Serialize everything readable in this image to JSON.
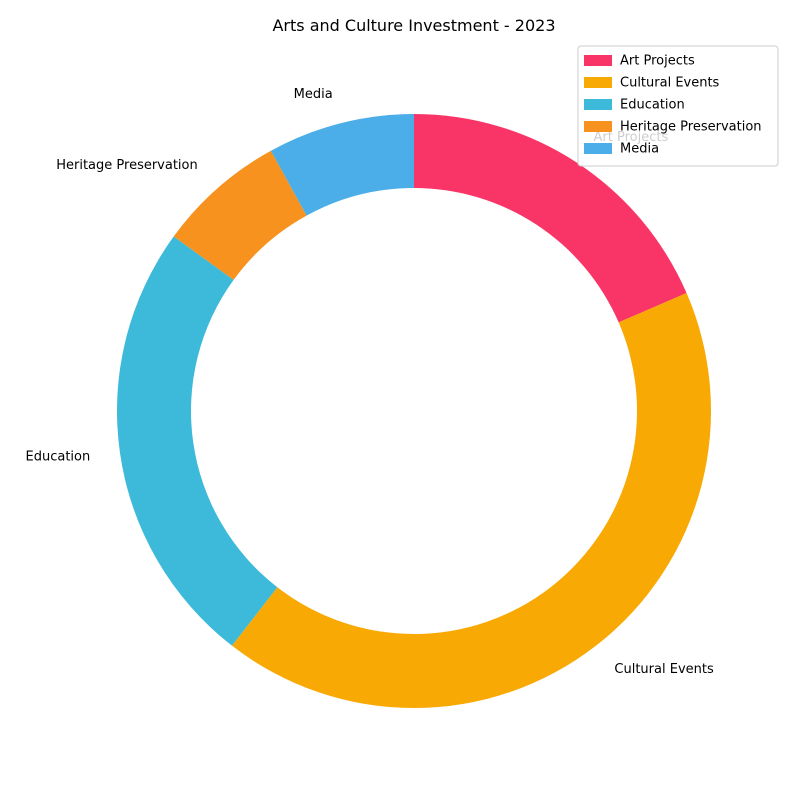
{
  "chart_data": {
    "type": "pie",
    "variant": "donut",
    "title": "Arts and Culture Investment - 2023",
    "categories": [
      "Art Projects",
      "Cultural Events",
      "Education",
      "Heritage Preservation",
      "Media"
    ],
    "values": [
      18.5,
      42.0,
      24.5,
      7.0,
      8.0
    ],
    "colors": [
      "#f93567",
      "#f9a903",
      "#3dbad9",
      "#f7921e",
      "#4baee8"
    ],
    "start_angle_deg": 90,
    "direction": "clockwise",
    "legend": {
      "position": "top-right",
      "entries": [
        "Art Projects",
        "Cultural Events",
        "Education",
        "Heritage Preservation",
        "Media"
      ]
    }
  }
}
